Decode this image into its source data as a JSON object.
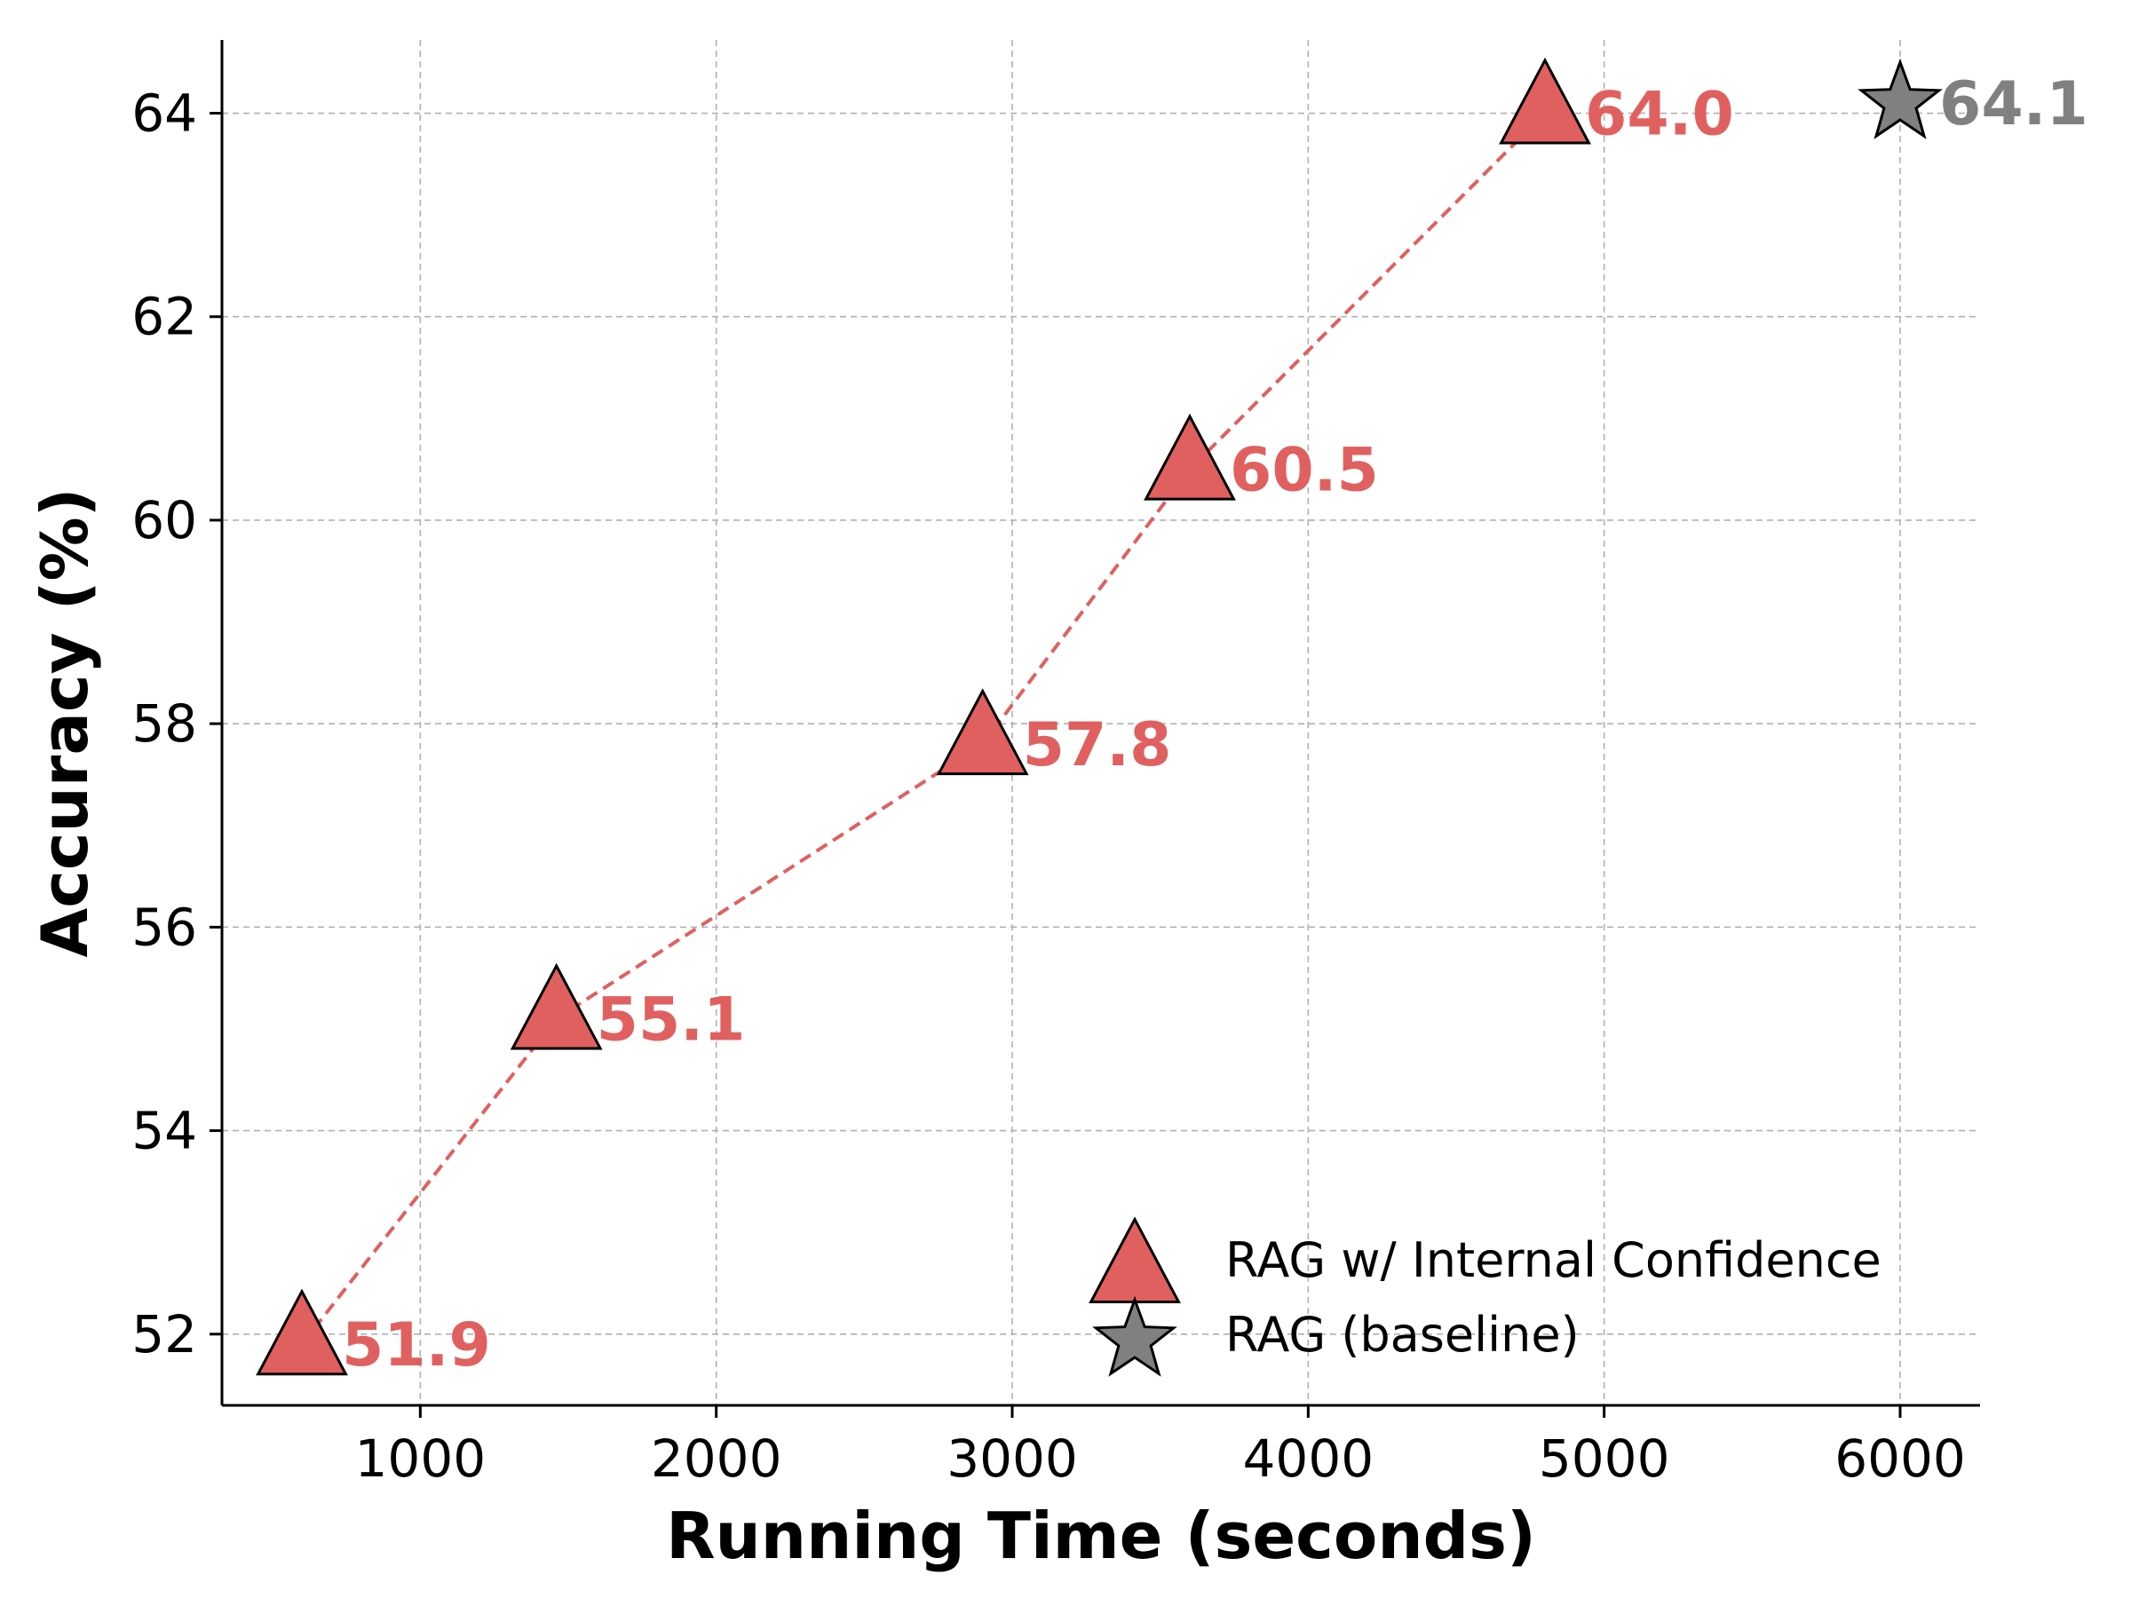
{
  "colors": {
    "series": "#e06060",
    "baseline": "#808080",
    "grid": "#b0b0b0"
  },
  "chart_data": {
    "type": "scatter",
    "xlabel": "Running Time (seconds)",
    "ylabel": "Accuracy (%)",
    "xlim": [
      330,
      6270
    ],
    "ylim": [
      51.3,
      64.72
    ],
    "xticks": [
      1000,
      2000,
      3000,
      4000,
      5000,
      6000
    ],
    "yticks": [
      52,
      54,
      56,
      58,
      60,
      62,
      64
    ],
    "grid": true,
    "legend_position": "lower-right",
    "series": [
      {
        "name": "RAG w/ Internal Confidence",
        "marker": "triangle",
        "line": "dashed",
        "x": [
          600,
          1460,
          2900,
          3600,
          4800
        ],
        "y": [
          51.9,
          55.1,
          57.8,
          60.5,
          64.0
        ],
        "labels": [
          "51.9",
          "55.1",
          "57.8",
          "60.5",
          "64.0"
        ]
      },
      {
        "name": "RAG (baseline)",
        "marker": "star",
        "line": "none",
        "x": [
          6000
        ],
        "y": [
          64.1
        ],
        "labels": [
          "64.1"
        ]
      }
    ]
  }
}
